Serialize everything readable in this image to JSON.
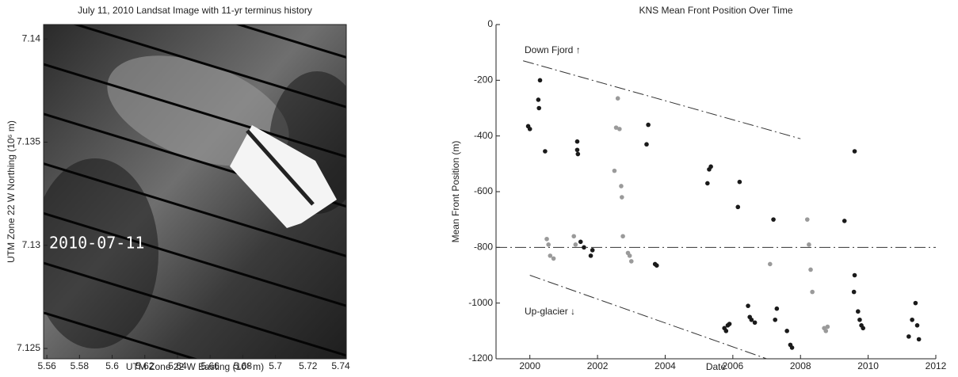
{
  "chart_data": [
    {
      "type": "image",
      "title": "July 11, 2010 Landsat Image with 11-yr terminus history",
      "xlabel": "UTM Zone 22 W Easting (10⁵ m)",
      "ylabel": "UTM Zone 22 W Northing (10⁶ m)",
      "annotation": "2010-07-11",
      "xlim": [
        5.558,
        5.7434
      ],
      "xticks": [
        5.56,
        5.58,
        5.6,
        5.62,
        5.64,
        5.66,
        5.68,
        5.7,
        5.72,
        5.74
      ],
      "ylim": [
        7.1245,
        7.1407
      ],
      "yticks": [
        7.125,
        7.13,
        7.135,
        7.14
      ]
    },
    {
      "type": "scatter",
      "title": "KNS Mean Front Position Over Time",
      "xlabel": "Date",
      "ylabel": "Mean Front Position (m)",
      "xlim": [
        1999,
        2012
      ],
      "xticks": [
        2000,
        2002,
        2004,
        2006,
        2008,
        2010,
        2012
      ],
      "ylim": [
        -1200,
        0
      ],
      "yticks": [
        0,
        -200,
        -400,
        -600,
        -800,
        -1000,
        -1200
      ],
      "annotations": [
        "Down Fjord ↑",
        "Up-glacier ↓"
      ],
      "lines": [
        {
          "x": [
            1999.8,
            2008
          ],
          "y": [
            -130,
            -410
          ]
        },
        {
          "x": [
            1999,
            2012
          ],
          "y": [
            -800,
            -800
          ]
        },
        {
          "x": [
            2000,
            2007
          ],
          "y": [
            -900,
            -1200
          ]
        }
      ],
      "series": [
        {
          "color": "#1a1a1a",
          "x": [
            1999.95,
            2000.0,
            2000.25,
            2000.27,
            2000.3,
            2000.45,
            2001.4,
            2001.4,
            2001.42,
            2003.5,
            2003.45,
            2003.7,
            2003.75,
            2005.3,
            2005.35,
            2005.25,
            2006.2,
            2006.15,
            2007.2,
            2005.8,
            2005.85,
            2005.75,
            2005.9,
            2006.5,
            2006.45,
            2006.55,
            2006.65,
            2007.3,
            2007.25,
            2007.6,
            2007.7,
            2007.75,
            2009.3,
            2009.6,
            2009.6,
            2009.58,
            2009.7,
            2009.75,
            2009.8,
            2009.85,
            2011.2,
            2011.3,
            2011.4,
            2011.45,
            2011.5,
            2001.5,
            2001.6,
            2001.8,
            2001.85
          ],
          "values": [
            -365,
            -375,
            -270,
            -300,
            -200,
            -455,
            -420,
            -450,
            -465,
            -360,
            -430,
            -860,
            -865,
            -520,
            -510,
            -570,
            -565,
            -655,
            -700,
            -1100,
            -1080,
            -1090,
            -1075,
            -1050,
            -1010,
            -1060,
            -1070,
            -1020,
            -1060,
            -1100,
            -1150,
            -1160,
            -705,
            -455,
            -900,
            -960,
            -1030,
            -1060,
            -1080,
            -1090,
            -1120,
            -1060,
            -1000,
            -1080,
            -1130,
            -780,
            -800,
            -830,
            -810
          ]
        },
        {
          "color": "#9a9a9a",
          "x": [
            2000.5,
            2000.55,
            2000.6,
            2000.7,
            2001.3,
            2001.35,
            2002.6,
            2002.55,
            2002.65,
            2002.5,
            2002.7,
            2002.72,
            2002.75,
            2002.9,
            2002.95,
            2003.0,
            2007.1,
            2008.2,
            2008.25,
            2008.3,
            2008.35,
            2008.7,
            2008.75,
            2008.8
          ],
          "values": [
            -770,
            -790,
            -830,
            -840,
            -760,
            -790,
            -265,
            -370,
            -375,
            -525,
            -580,
            -620,
            -760,
            -820,
            -830,
            -850,
            -860,
            -700,
            -790,
            -880,
            -960,
            -1090,
            -1100,
            -1085
          ]
        }
      ]
    }
  ]
}
